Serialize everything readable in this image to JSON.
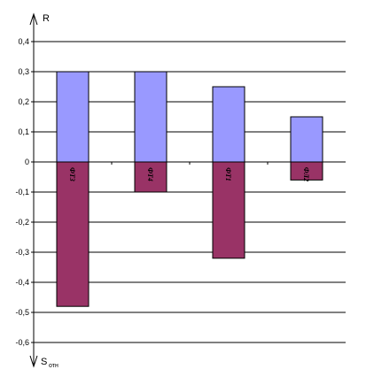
{
  "chart_data": {
    "type": "bar",
    "categories": [
      "ФТЗ",
      "ФТ4",
      "ФТ1",
      "ФЛ2"
    ],
    "series": [
      {
        "name": "",
        "values": [
          0.3,
          0.3,
          0.25,
          0.15
        ],
        "color": "#9999ff"
      },
      {
        "name": "",
        "values": [
          -0.48,
          -0.1,
          -0.32,
          -0.06
        ],
        "color": "#993366"
      }
    ],
    "y_ticks": [
      "0,4",
      "0,3",
      "0,2",
      "0,1",
      "0",
      "-0,1",
      "-0,2",
      "-0,3",
      "-0,4",
      "-0,5",
      "-0,6"
    ],
    "ylim": [
      -0.6,
      0.4
    ],
    "ylabel_top": "R",
    "ylabel_bottom": "S",
    "ylabel_bottom_sub": "отн",
    "grid": true,
    "legend": "none"
  }
}
